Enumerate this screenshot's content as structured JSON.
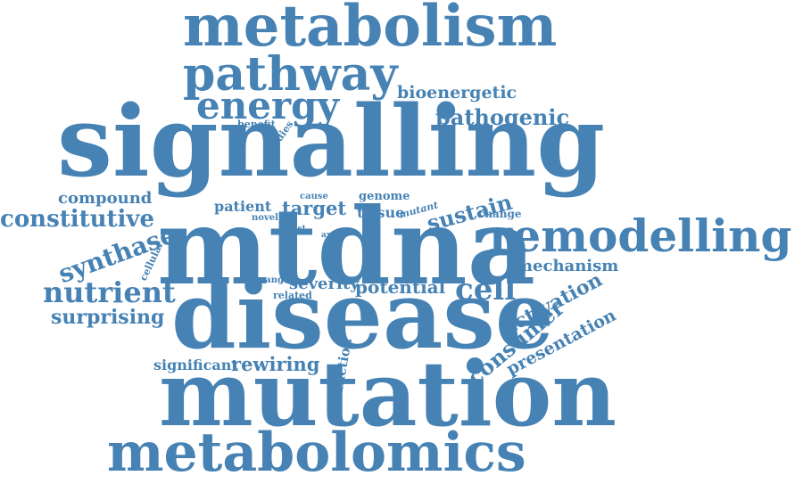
{
  "colors": {
    "word": "#4682b4",
    "background": "#ffffff"
  },
  "words": [
    {
      "id": "metabolism",
      "text": "metabolism"
    },
    {
      "id": "pathway",
      "text": "pathway"
    },
    {
      "id": "energy",
      "text": "energy"
    },
    {
      "id": "bioenergetic",
      "text": "bioenergetic"
    },
    {
      "id": "pathogenic",
      "text": "pathogenic"
    },
    {
      "id": "signalling",
      "text": "signalling"
    },
    {
      "id": "benefit",
      "text": "benefit"
    },
    {
      "id": "studies",
      "text": "studies"
    },
    {
      "id": "compound",
      "text": "compound"
    },
    {
      "id": "constitutive",
      "text": "constitutive"
    },
    {
      "id": "patient",
      "text": "patient"
    },
    {
      "id": "novel",
      "text": "novel"
    },
    {
      "id": "cause",
      "text": "cause"
    },
    {
      "id": "target",
      "text": "target"
    },
    {
      "id": "genome",
      "text": "genome"
    },
    {
      "id": "tissue",
      "text": "tissue"
    },
    {
      "id": "mutant",
      "text": "mutant"
    },
    {
      "id": "sustain",
      "text": "sustain"
    },
    {
      "id": "change",
      "text": "change"
    },
    {
      "id": "mtdna",
      "text": "mtdna"
    },
    {
      "id": "most",
      "text": "most"
    },
    {
      "id": "axis",
      "text": "axis"
    },
    {
      "id": "remodelling",
      "text": "remodelling"
    },
    {
      "id": "synthase",
      "text": "synthase"
    },
    {
      "id": "cellular",
      "text": "cellular"
    },
    {
      "id": "mechanism",
      "text": "mechanism"
    },
    {
      "id": "nutrient",
      "text": "nutrient"
    },
    {
      "id": "range",
      "text": "range"
    },
    {
      "id": "related",
      "text": "related"
    },
    {
      "id": "severity",
      "text": "severity"
    },
    {
      "id": "potential",
      "text": "potential"
    },
    {
      "id": "cell",
      "text": "cell"
    },
    {
      "id": "activation",
      "text": "activation"
    },
    {
      "id": "surprising",
      "text": "surprising"
    },
    {
      "id": "disease",
      "text": "disease"
    },
    {
      "id": "consumer",
      "text": "consumer"
    },
    {
      "id": "presentation",
      "text": "presentation"
    },
    {
      "id": "significant",
      "text": "significant"
    },
    {
      "id": "rewiring",
      "text": "rewiring"
    },
    {
      "id": "function",
      "text": "function"
    },
    {
      "id": "mutation",
      "text": "mutation"
    },
    {
      "id": "metabolomics",
      "text": "metabolomics"
    }
  ]
}
